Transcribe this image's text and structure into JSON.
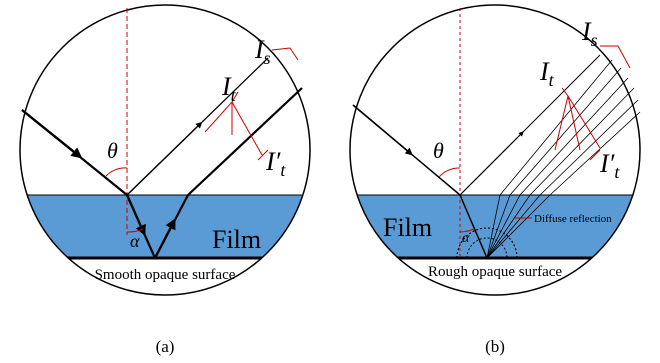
{
  "panels": [
    {
      "caption": "(a)",
      "film": "Film",
      "surface": "Smooth opaque surface",
      "theta": "θ",
      "alpha": "α",
      "labels": [
        {
          "main": "I",
          "sub": "t"
        },
        {
          "main": "I",
          "sub": "s"
        },
        {
          "main": "I′",
          "sub": "t"
        }
      ]
    },
    {
      "caption": "(b)",
      "film": "Film",
      "surface": "Rough opaque surface",
      "theta": "θ",
      "alpha": "α",
      "annotation": "Diffuse reflection",
      "labels": [
        {
          "main": "I",
          "sub": "t"
        },
        {
          "main": "I",
          "sub": "s"
        },
        {
          "main": "I′",
          "sub": "t"
        }
      ]
    }
  ]
}
